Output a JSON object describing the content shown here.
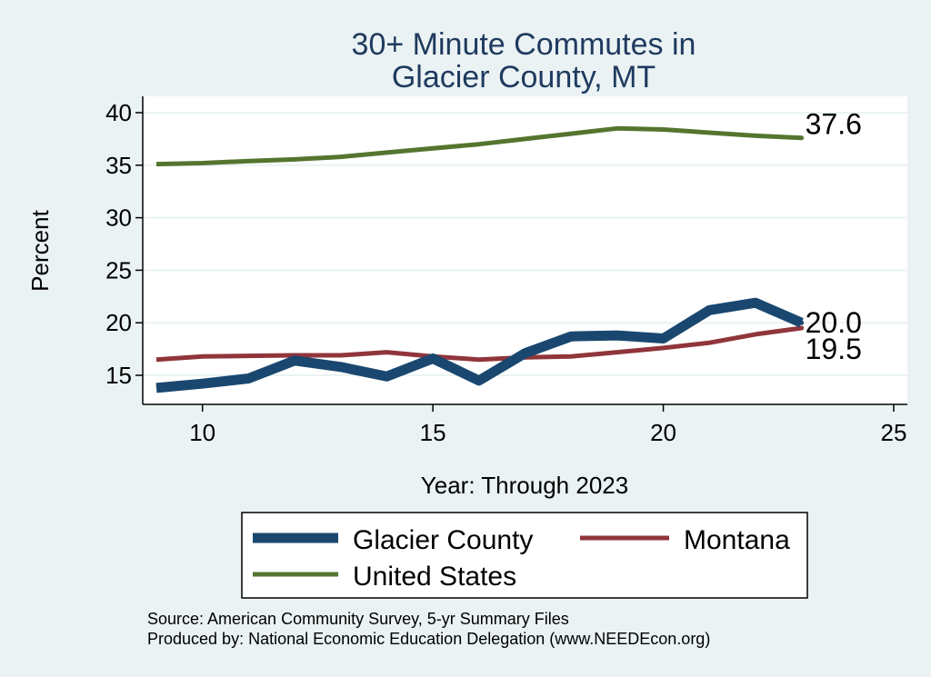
{
  "chart_data": {
    "type": "line",
    "title": [
      "30+ Minute Commutes in",
      "Glacier County, MT"
    ],
    "xlabel": "Year: Through 2023",
    "ylabel": "Percent",
    "xlim": [
      9,
      25
    ],
    "ylim": [
      12.5,
      41.5
    ],
    "xticks": [
      10,
      15,
      20,
      25
    ],
    "yticks": [
      15,
      20,
      25,
      30,
      35,
      40
    ],
    "grid": "horizontal",
    "legend_position": "bottom",
    "x": [
      9,
      10,
      11,
      12,
      13,
      14,
      15,
      16,
      17,
      18,
      19,
      20,
      21,
      22,
      23
    ],
    "series": [
      {
        "name": "Glacier County",
        "color": "#1a476f",
        "values": [
          13.8,
          14.2,
          14.7,
          16.4,
          15.8,
          14.9,
          16.6,
          14.5,
          17.1,
          18.7,
          18.8,
          18.5,
          21.2,
          21.9,
          20.0
        ],
        "end_label": "20.0"
      },
      {
        "name": "Montana",
        "color": "#90353b",
        "values": [
          16.5,
          16.8,
          16.85,
          16.9,
          16.9,
          17.2,
          16.8,
          16.5,
          16.7,
          16.8,
          17.2,
          17.6,
          18.1,
          18.9,
          19.5
        ],
        "end_label": "19.5"
      },
      {
        "name": "United States",
        "color": "#55752f",
        "values": [
          35.1,
          35.2,
          35.4,
          35.55,
          35.8,
          36.2,
          36.6,
          37.0,
          37.5,
          38.0,
          38.5,
          38.4,
          38.1,
          37.8,
          37.6
        ],
        "end_label": "37.6"
      }
    ]
  },
  "legend": {
    "items": [
      "Glacier County",
      "Montana",
      "United States"
    ]
  },
  "source": {
    "line1": "Source: American Community Survey, 5-yr Summary Files",
    "line2": "Produced by: National Economic Education Delegation (www.NEEDEcon.org)"
  }
}
